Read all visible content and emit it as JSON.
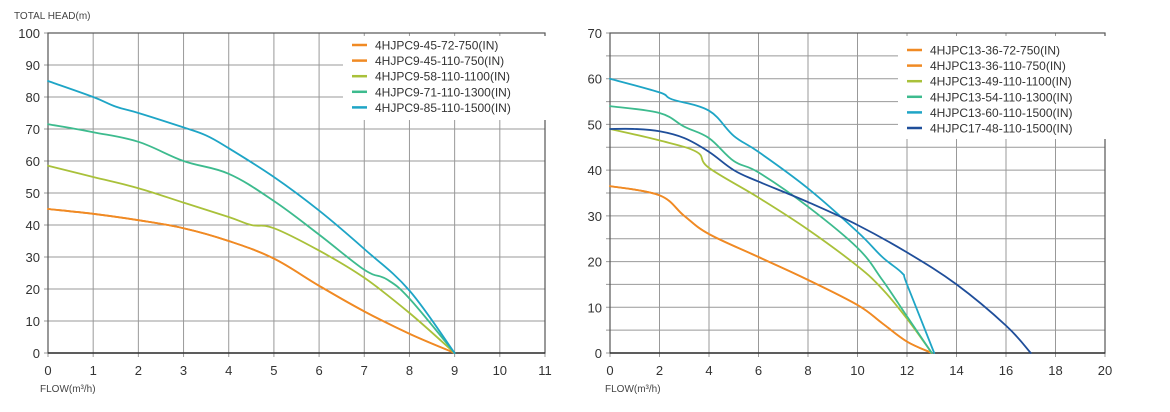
{
  "chart_data": [
    {
      "type": "line",
      "ylabel": "TOTAL HEAD(m)",
      "xlabel": "FLOW(m³/h)",
      "xlim": [
        0,
        11
      ],
      "ylim": [
        0,
        100
      ],
      "xticks": [
        0,
        1,
        2,
        3,
        4,
        5,
        6,
        7,
        8,
        9,
        10,
        11
      ],
      "yticks": [
        0,
        10,
        20,
        30,
        40,
        50,
        60,
        70,
        80,
        90,
        100
      ],
      "grid": true,
      "legend": "top-right",
      "series": [
        {
          "name": "4HJPC9-45-72-750(IN)",
          "color": "#f08a24",
          "x": [
            0,
            1,
            2,
            3,
            4,
            5,
            6,
            7,
            8,
            9
          ],
          "y": [
            45,
            43.5,
            41.5,
            39,
            35,
            29.5,
            21,
            13,
            6,
            0
          ]
        },
        {
          "name": "4HJPC9-45-110-750(IN)",
          "color": "#f08a24",
          "x": [
            0,
            1,
            2,
            3,
            4,
            5,
            6,
            7,
            8,
            9
          ],
          "y": [
            45,
            43.5,
            41.5,
            39,
            35,
            29.5,
            21,
            13,
            6,
            0
          ]
        },
        {
          "name": "4HJPC9-58-110-1100(IN)",
          "color": "#a9c13a",
          "x": [
            0,
            1,
            2,
            3,
            4,
            4.5,
            5,
            6,
            7,
            8,
            9
          ],
          "y": [
            58.5,
            55,
            51.5,
            47,
            42.5,
            40,
            39,
            32,
            23.5,
            12.5,
            0
          ]
        },
        {
          "name": "4HJPC9-71-110-1300(IN)",
          "color": "#3dbb8e",
          "x": [
            0,
            1,
            2,
            3,
            4,
            5,
            6,
            7,
            7.5,
            8,
            9
          ],
          "y": [
            71.5,
            69,
            66,
            60,
            56,
            47.5,
            37,
            26,
            23,
            17,
            0
          ]
        },
        {
          "name": "4HJPC9-85-110-1500(IN)",
          "color": "#1ea5c6",
          "x": [
            0,
            1,
            1.5,
            2,
            3,
            3.5,
            4,
            5,
            6,
            7,
            8,
            9
          ],
          "y": [
            85,
            80,
            77,
            75,
            70.5,
            68,
            64,
            55,
            44.5,
            32.5,
            19.5,
            0
          ]
        }
      ]
    },
    {
      "type": "line",
      "ylabel": "",
      "xlabel": "FLOW(m³/h)",
      "xlim": [
        0,
        20
      ],
      "ylim": [
        0,
        70
      ],
      "xticks": [
        0,
        2,
        4,
        6,
        8,
        10,
        12,
        14,
        16,
        18,
        20
      ],
      "yticks": [
        0,
        10,
        20,
        30,
        40,
        50,
        60,
        70
      ],
      "grid": true,
      "legend": "top-right",
      "series": [
        {
          "name": "4HJPC13-36-72-750(IN)",
          "color": "#f08a24",
          "x": [
            0,
            2,
            3,
            4,
            6,
            8,
            10,
            11,
            12,
            13
          ],
          "y": [
            36.5,
            34.5,
            30,
            26,
            21,
            16,
            10.5,
            6.5,
            2.5,
            0
          ]
        },
        {
          "name": "4HJPC13-36-110-750(IN)",
          "color": "#f08a24",
          "x": [
            0,
            2,
            3,
            4,
            6,
            8,
            10,
            11,
            12,
            13
          ],
          "y": [
            36.5,
            34.5,
            30,
            26,
            21,
            16,
            10.5,
            6.5,
            2.5,
            0
          ]
        },
        {
          "name": "4HJPC13-49-110-1100(IN)",
          "color": "#a9c13a",
          "x": [
            0,
            2,
            3.5,
            4,
            6,
            8,
            10,
            11,
            12,
            13
          ],
          "y": [
            49,
            46.5,
            44,
            40.5,
            34,
            27,
            19,
            14,
            7.5,
            0
          ]
        },
        {
          "name": "4HJPC13-54-110-1300(IN)",
          "color": "#3dbb8e",
          "x": [
            0,
            2,
            3,
            4,
            5,
            6,
            8,
            10,
            11,
            12,
            13
          ],
          "y": [
            54,
            52.5,
            49.5,
            47,
            42,
            39.5,
            32,
            23,
            16,
            8,
            0
          ]
        },
        {
          "name": "4HJPC13-60-110-1500(IN)",
          "color": "#1ea5c6",
          "x": [
            0,
            2,
            2.5,
            4,
            5,
            6,
            8,
            10,
            11,
            11.8,
            12,
            13.1
          ],
          "y": [
            60,
            57,
            55.5,
            53,
            47.5,
            44,
            36,
            26.5,
            21,
            17.5,
            15,
            0
          ]
        },
        {
          "name": "4HJPC17-48-110-1500(IN)",
          "color": "#1f4e9a",
          "x": [
            0,
            1,
            2,
            3,
            4,
            5,
            6,
            8,
            10,
            12,
            14,
            16,
            17
          ],
          "y": [
            49,
            49,
            48.5,
            47,
            44,
            40,
            37.5,
            33,
            28,
            22,
            15,
            6,
            0
          ]
        }
      ]
    }
  ]
}
